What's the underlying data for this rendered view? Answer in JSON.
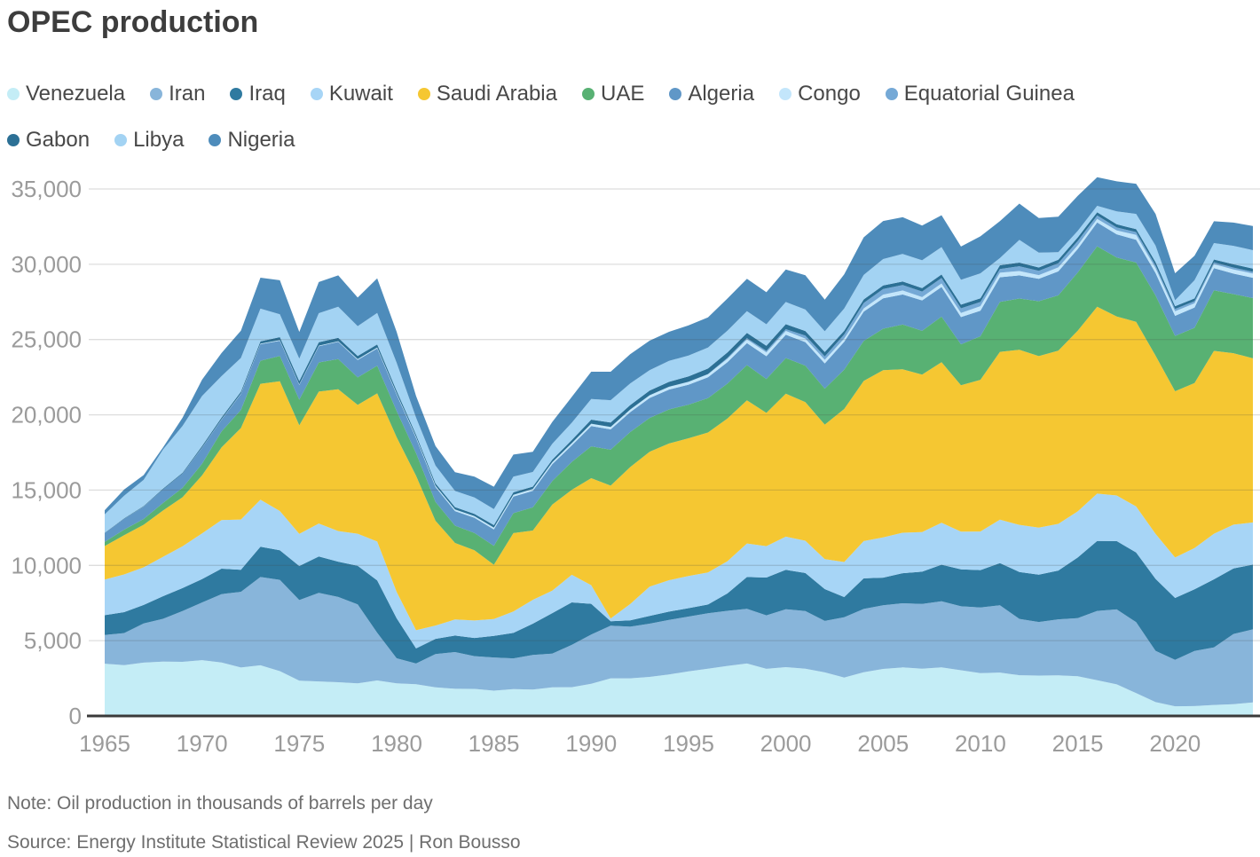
{
  "title": "OPEC production",
  "note": "Note: Oil production in thousands of barrels per day",
  "source": "Source: Energy Institute Statistical Review 2025 | Ron Bousso",
  "chart_data": {
    "type": "area",
    "stacked": true,
    "title": "OPEC production",
    "unit": "thousand barrels per day",
    "grid": "horizontal",
    "legend_position": "top",
    "ylim": [
      0,
      35000
    ],
    "axis_color": "#3a3a3a",
    "grid_color": "#444444",
    "tick_label_color": "#9b9b9b",
    "x": [
      1965,
      1966,
      1967,
      1968,
      1969,
      1970,
      1971,
      1972,
      1973,
      1974,
      1975,
      1976,
      1977,
      1978,
      1979,
      1980,
      1981,
      1982,
      1983,
      1984,
      1985,
      1986,
      1987,
      1988,
      1989,
      1990,
      1991,
      1992,
      1993,
      1994,
      1995,
      1996,
      1997,
      1998,
      1999,
      2000,
      2001,
      2002,
      2003,
      2004,
      2005,
      2006,
      2007,
      2008,
      2009,
      2010,
      2011,
      2012,
      2013,
      2014,
      2015,
      2016,
      2017,
      2018,
      2019,
      2020,
      2021,
      2022,
      2023,
      2024
    ],
    "x_ticks": [
      1965,
      1970,
      1975,
      1980,
      1985,
      1990,
      1995,
      2000,
      2005,
      2010,
      2015,
      2020
    ],
    "y_ticks": [
      {
        "value": 0,
        "label": "0"
      },
      {
        "value": 5000,
        "label": "5,000"
      },
      {
        "value": 10000,
        "label": "10,000"
      },
      {
        "value": 15000,
        "label": "15,000"
      },
      {
        "value": 20000,
        "label": "20,000"
      },
      {
        "value": 25000,
        "label": "25,000"
      },
      {
        "value": 30000,
        "label": "30,000"
      },
      {
        "value": 35000,
        "label": "35,000"
      }
    ],
    "series": [
      {
        "name": "Venezuela",
        "color": "#c4edf6",
        "values": [
          3473,
          3371,
          3542,
          3605,
          3594,
          3708,
          3549,
          3220,
          3366,
          2976,
          2346,
          2294,
          2238,
          2166,
          2356,
          2168,
          2102,
          1895,
          1801,
          1798,
          1677,
          1787,
          1752,
          1903,
          1907,
          2135,
          2501,
          2499,
          2590,
          2757,
          2959,
          3137,
          3321,
          3480,
          3126,
          3239,
          3142,
          2895,
          2554,
          2907,
          3120,
          3221,
          3135,
          3222,
          3033,
          2842,
          2880,
          2704,
          2680,
          2692,
          2631,
          2373,
          2096,
          1514,
          918,
          640,
          654,
          731,
          783,
          900
        ]
      },
      {
        "name": "Iran",
        "color": "#88b5da",
        "values": [
          1908,
          2132,
          2603,
          2848,
          3376,
          3829,
          4540,
          5023,
          5861,
          6060,
          5350,
          5883,
          5663,
          5242,
          3168,
          1662,
          1381,
          2214,
          2440,
          2174,
          2205,
          2037,
          2298,
          2240,
          2810,
          3270,
          3500,
          3429,
          3540,
          3618,
          3643,
          3686,
          3664,
          3634,
          3557,
          3852,
          3825,
          3414,
          3999,
          4201,
          4234,
          4260,
          4303,
          4396,
          4249,
          4356,
          4474,
          3742,
          3558,
          3725,
          3862,
          4602,
          4982,
          4715,
          3404,
          3084,
          3657,
          3822,
          4662,
          4850
        ]
      },
      {
        "name": "Iraq",
        "color": "#2f7aa0",
        "values": [
          1313,
          1392,
          1228,
          1503,
          1521,
          1549,
          1694,
          1466,
          2018,
          1971,
          2262,
          2415,
          2348,
          2563,
          3477,
          2658,
          1000,
          1012,
          1099,
          1209,
          1433,
          1690,
          2079,
          2685,
          2826,
          2040,
          285,
          425,
          512,
          553,
          560,
          579,
          1155,
          2111,
          2508,
          2614,
          2523,
          2116,
          1344,
          2030,
          1833,
          1999,
          2143,
          2428,
          2452,
          2490,
          2801,
          3116,
          3141,
          3239,
          4031,
          4648,
          4538,
          4632,
          4779,
          4114,
          4102,
          4520,
          4353,
          4300
        ]
      },
      {
        "name": "Kuwait",
        "color": "#a7d5f6",
        "values": [
          2371,
          2501,
          2499,
          2613,
          2773,
          3036,
          3225,
          3339,
          3123,
          2606,
          2130,
          2188,
          2031,
          2131,
          2583,
          1757,
          1211,
          882,
          1064,
          1157,
          1123,
          1419,
          1585,
          1492,
          1830,
          1239,
          190,
          1077,
          1945,
          2085,
          2130,
          2129,
          2137,
          2232,
          2085,
          2206,
          2148,
          1995,
          2329,
          2475,
          2668,
          2690,
          2636,
          2786,
          2511,
          2560,
          2880,
          3127,
          3126,
          3101,
          3065,
          3145,
          3025,
          3049,
          2996,
          2686,
          2741,
          3028,
          2908,
          2800
        ]
      },
      {
        "name": "Saudi Arabia",
        "color": "#f5c732",
        "values": [
          2219,
          2615,
          2825,
          3080,
          3262,
          3851,
          4821,
          6070,
          7693,
          8618,
          7216,
          8762,
          9419,
          8554,
          9841,
          10270,
          10256,
          6961,
          5086,
          4663,
          3601,
          5208,
          4599,
          5720,
          5645,
          7105,
          8820,
          9098,
          8962,
          9084,
          9152,
          9297,
          9482,
          9502,
          8853,
          9491,
          9209,
          8928,
          10164,
          10638,
          11114,
          10853,
          10449,
          10663,
          9713,
          10075,
          11144,
          11635,
          11393,
          11505,
          11994,
          12406,
          11892,
          12261,
          11832,
          11039,
          10954,
          12144,
          11389,
          10900
        ]
      },
      {
        "name": "UAE",
        "color": "#58b173",
        "values": [
          282,
          360,
          382,
          497,
          624,
          780,
          1060,
          1203,
          1533,
          1679,
          1699,
          1936,
          1999,
          1831,
          1831,
          1735,
          1502,
          1250,
          1149,
          1146,
          1260,
          1330,
          1541,
          1565,
          1860,
          2117,
          2386,
          2325,
          2242,
          2260,
          2233,
          2278,
          2316,
          2345,
          2250,
          2368,
          2422,
          2390,
          2611,
          2656,
          2753,
          2971,
          2915,
          3026,
          2723,
          2895,
          3319,
          3399,
          3646,
          3674,
          3873,
          4020,
          3915,
          3942,
          3998,
          3679,
          3668,
          4020,
          3922,
          4000
        ]
      },
      {
        "name": "Algeria",
        "color": "#6097c7",
        "values": [
          577,
          720,
          823,
          904,
          950,
          1052,
          785,
          1062,
          1097,
          1009,
          983,
          1075,
          1152,
          1161,
          1154,
          1106,
          1002,
          987,
          968,
          1014,
          1087,
          1098,
          1100,
          1111,
          1095,
          1347,
          1351,
          1325,
          1329,
          1322,
          1327,
          1386,
          1421,
          1461,
          1515,
          1549,
          1562,
          1680,
          1852,
          1946,
          2015,
          2003,
          2016,
          1969,
          1811,
          1689,
          1642,
          1537,
          1485,
          1589,
          1558,
          1577,
          1540,
          1510,
          1487,
          1330,
          1353,
          1474,
          1364,
          1350
        ]
      },
      {
        "name": "Congo",
        "color": "#c3e6fb",
        "values": [
          1,
          1,
          1,
          1,
          2,
          17,
          20,
          30,
          35,
          39,
          37,
          40,
          40,
          50,
          55,
          63,
          75,
          90,
          105,
          110,
          116,
          120,
          125,
          135,
          145,
          156,
          160,
          169,
          175,
          180,
          188,
          200,
          225,
          250,
          255,
          254,
          236,
          231,
          215,
          216,
          246,
          262,
          222,
          235,
          274,
          311,
          295,
          289,
          250,
          265,
          246,
          238,
          260,
          323,
          332,
          300,
          276,
          269,
          277,
          280
        ]
      },
      {
        "name": "Equatorial Guinea",
        "color": "#75a9d6",
        "values": [
          0,
          0,
          0,
          0,
          0,
          0,
          0,
          0,
          0,
          0,
          0,
          0,
          0,
          0,
          0,
          0,
          0,
          0,
          0,
          0,
          0,
          0,
          0,
          0,
          0,
          0,
          0,
          3,
          5,
          5,
          5,
          17,
          60,
          83,
          100,
          118,
          199,
          231,
          270,
          361,
          376,
          358,
          368,
          361,
          307,
          274,
          252,
          318,
          281,
          281,
          289,
          227,
          195,
          193,
          172,
          154,
          144,
          119,
          120,
          115
        ]
      },
      {
        "name": "Gabon",
        "color": "#2c7095",
        "values": [
          26,
          29,
          36,
          46,
          50,
          109,
          115,
          125,
          150,
          202,
          223,
          226,
          222,
          209,
          203,
          178,
          151,
          155,
          157,
          152,
          172,
          166,
          155,
          173,
          204,
          270,
          295,
          299,
          305,
          327,
          355,
          365,
          364,
          337,
          340,
          327,
          301,
          295,
          240,
          235,
          234,
          235,
          230,
          235,
          242,
          246,
          245,
          242,
          225,
          230,
          233,
          220,
          210,
          194,
          218,
          191,
          181,
          191,
          218,
          220
        ]
      },
      {
        "name": "Libya",
        "color": "#a3d3f3",
        "values": [
          1220,
          1505,
          1740,
          2602,
          3110,
          3318,
          2761,
          2239,
          2175,
          1521,
          1480,
          1933,
          2063,
          1983,
          2092,
          1862,
          1137,
          1183,
          1076,
          1087,
          1059,
          1034,
          972,
          1055,
          1150,
          1375,
          1483,
          1433,
          1361,
          1389,
          1390,
          1394,
          1446,
          1449,
          1425,
          1475,
          1427,
          1375,
          1485,
          1624,
          1751,
          1834,
          1848,
          1820,
          1652,
          1659,
          479,
          1509,
          988,
          498,
          432,
          426,
          865,
          1010,
          1097,
          391,
          1207,
          1088,
          1226,
          1220
        ]
      },
      {
        "name": "Nigeria",
        "color": "#4e8cbb",
        "values": [
          274,
          418,
          319,
          141,
          540,
          1083,
          1531,
          1816,
          2054,
          2255,
          1783,
          2067,
          2085,
          1897,
          2302,
          2055,
          1433,
          1295,
          1241,
          1388,
          1495,
          1467,
          1341,
          1450,
          1716,
          1810,
          1892,
          1943,
          1960,
          1931,
          1993,
          2001,
          2132,
          2153,
          2130,
          2155,
          2274,
          2103,
          2263,
          2502,
          2527,
          2440,
          2305,
          2113,
          2208,
          2455,
          2453,
          2410,
          2302,
          2361,
          2329,
          1903,
          1988,
          2007,
          2110,
          1797,
          1626,
          1450,
          1544,
          1600
        ]
      }
    ]
  }
}
